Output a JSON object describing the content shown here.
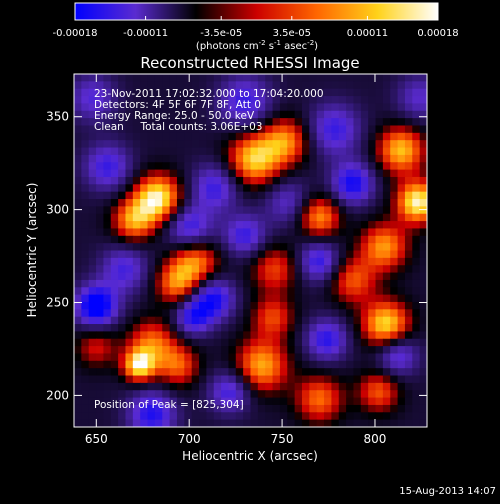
{
  "chart_data": {
    "type": "heatmap",
    "title": "Reconstructed RHESSI Image",
    "xlabel": "Heliocentric X (arcsec)",
    "ylabel": "Heliocentric Y (arcsec)",
    "xlim": [
      638,
      828
    ],
    "ylim": [
      183,
      373
    ],
    "x_ticks": [
      650,
      700,
      750,
      800
    ],
    "y_ticks": [
      200,
      250,
      300,
      350
    ],
    "colorbar": {
      "range": [
        -0.00018,
        0.00018
      ],
      "tick_values": [
        -0.00018,
        -0.00011,
        -3.5e-05,
        3.5e-05,
        0.00011,
        0.00018
      ],
      "tick_labels": [
        "-0.00018",
        "-0.00011",
        "-3.5e-05",
        "3.5e-05",
        "0.00011",
        "0.00018"
      ],
      "units_label": "(photons cm",
      "units_exp1": "-2",
      "units_mid": " s",
      "units_exp2": "-1",
      "units_tail": " asec",
      "units_exp3": "-2",
      "units_end": ")",
      "colors": [
        "#0000ff",
        "#5a2bd0",
        "#000000",
        "#cc0000",
        "#ff6600",
        "#ffd21a",
        "#ffffff"
      ]
    },
    "annotations": [
      "23-Nov-2011 17:02:32.000 to 17:04:20.000",
      "Detectors: 4F 5F 6F 7F 8F, Att 0",
      "Energy Range: 25.0 - 50.0 keV",
      "Clean     Total counts: 3.06E+03"
    ],
    "peak_label": "Position of Peak = [825,304]",
    "peak": [
      825,
      304
    ],
    "blobs": [
      {
        "x": 683,
        "y": 306,
        "v": 1.0,
        "s": 9
      },
      {
        "x": 670,
        "y": 294,
        "v": 0.7,
        "s": 8
      },
      {
        "x": 735,
        "y": 327,
        "v": 0.85,
        "s": 10
      },
      {
        "x": 752,
        "y": 337,
        "v": 0.65,
        "s": 9
      },
      {
        "x": 814,
        "y": 332,
        "v": 0.8,
        "s": 9
      },
      {
        "x": 823,
        "y": 304,
        "v": 1.0,
        "s": 8
      },
      {
        "x": 805,
        "y": 280,
        "v": 0.7,
        "s": 9
      },
      {
        "x": 770,
        "y": 296,
        "v": 0.7,
        "s": 8
      },
      {
        "x": 703,
        "y": 272,
        "v": 0.7,
        "s": 9
      },
      {
        "x": 693,
        "y": 260,
        "v": 0.6,
        "s": 8
      },
      {
        "x": 746,
        "y": 268,
        "v": 0.5,
        "s": 9
      },
      {
        "x": 745,
        "y": 242,
        "v": 0.5,
        "s": 8
      },
      {
        "x": 788,
        "y": 262,
        "v": 0.55,
        "s": 9
      },
      {
        "x": 806,
        "y": 238,
        "v": 0.9,
        "s": 9
      },
      {
        "x": 680,
        "y": 228,
        "v": 0.6,
        "s": 9
      },
      {
        "x": 673,
        "y": 216,
        "v": 0.9,
        "s": 6
      },
      {
        "x": 694,
        "y": 216,
        "v": 0.55,
        "s": 8
      },
      {
        "x": 739,
        "y": 216,
        "v": 0.75,
        "s": 10
      },
      {
        "x": 770,
        "y": 198,
        "v": 0.6,
        "s": 9
      },
      {
        "x": 802,
        "y": 202,
        "v": 0.55,
        "s": 8
      },
      {
        "x": 650,
        "y": 226,
        "v": 0.4,
        "s": 8
      },
      {
        "x": 665,
        "y": 268,
        "v": -0.5,
        "s": 9
      },
      {
        "x": 650,
        "y": 248,
        "v": -0.9,
        "s": 8
      },
      {
        "x": 700,
        "y": 290,
        "v": -0.6,
        "s": 9
      },
      {
        "x": 714,
        "y": 312,
        "v": -0.55,
        "s": 9
      },
      {
        "x": 713,
        "y": 252,
        "v": -0.7,
        "s": 8
      },
      {
        "x": 702,
        "y": 242,
        "v": -0.6,
        "s": 7
      },
      {
        "x": 656,
        "y": 323,
        "v": -0.55,
        "s": 9
      },
      {
        "x": 788,
        "y": 314,
        "v": -0.7,
        "s": 8
      },
      {
        "x": 778,
        "y": 343,
        "v": -0.55,
        "s": 10
      },
      {
        "x": 730,
        "y": 358,
        "v": -0.55,
        "s": 10
      },
      {
        "x": 770,
        "y": 272,
        "v": -0.6,
        "s": 8
      },
      {
        "x": 730,
        "y": 286,
        "v": -0.55,
        "s": 8
      },
      {
        "x": 774,
        "y": 230,
        "v": -0.6,
        "s": 8
      },
      {
        "x": 812,
        "y": 222,
        "v": -0.55,
        "s": 8
      },
      {
        "x": 722,
        "y": 202,
        "v": -0.55,
        "s": 8
      },
      {
        "x": 680,
        "y": 190,
        "v": -0.65,
        "s": 9
      },
      {
        "x": 824,
        "y": 360,
        "v": -0.4,
        "s": 9
      },
      {
        "x": 648,
        "y": 360,
        "v": -0.45,
        "s": 9
      },
      {
        "x": 753,
        "y": 304,
        "v": -0.4,
        "s": 9
      }
    ]
  },
  "footer": {
    "timestamp": "15-Aug-2013 14:07"
  }
}
